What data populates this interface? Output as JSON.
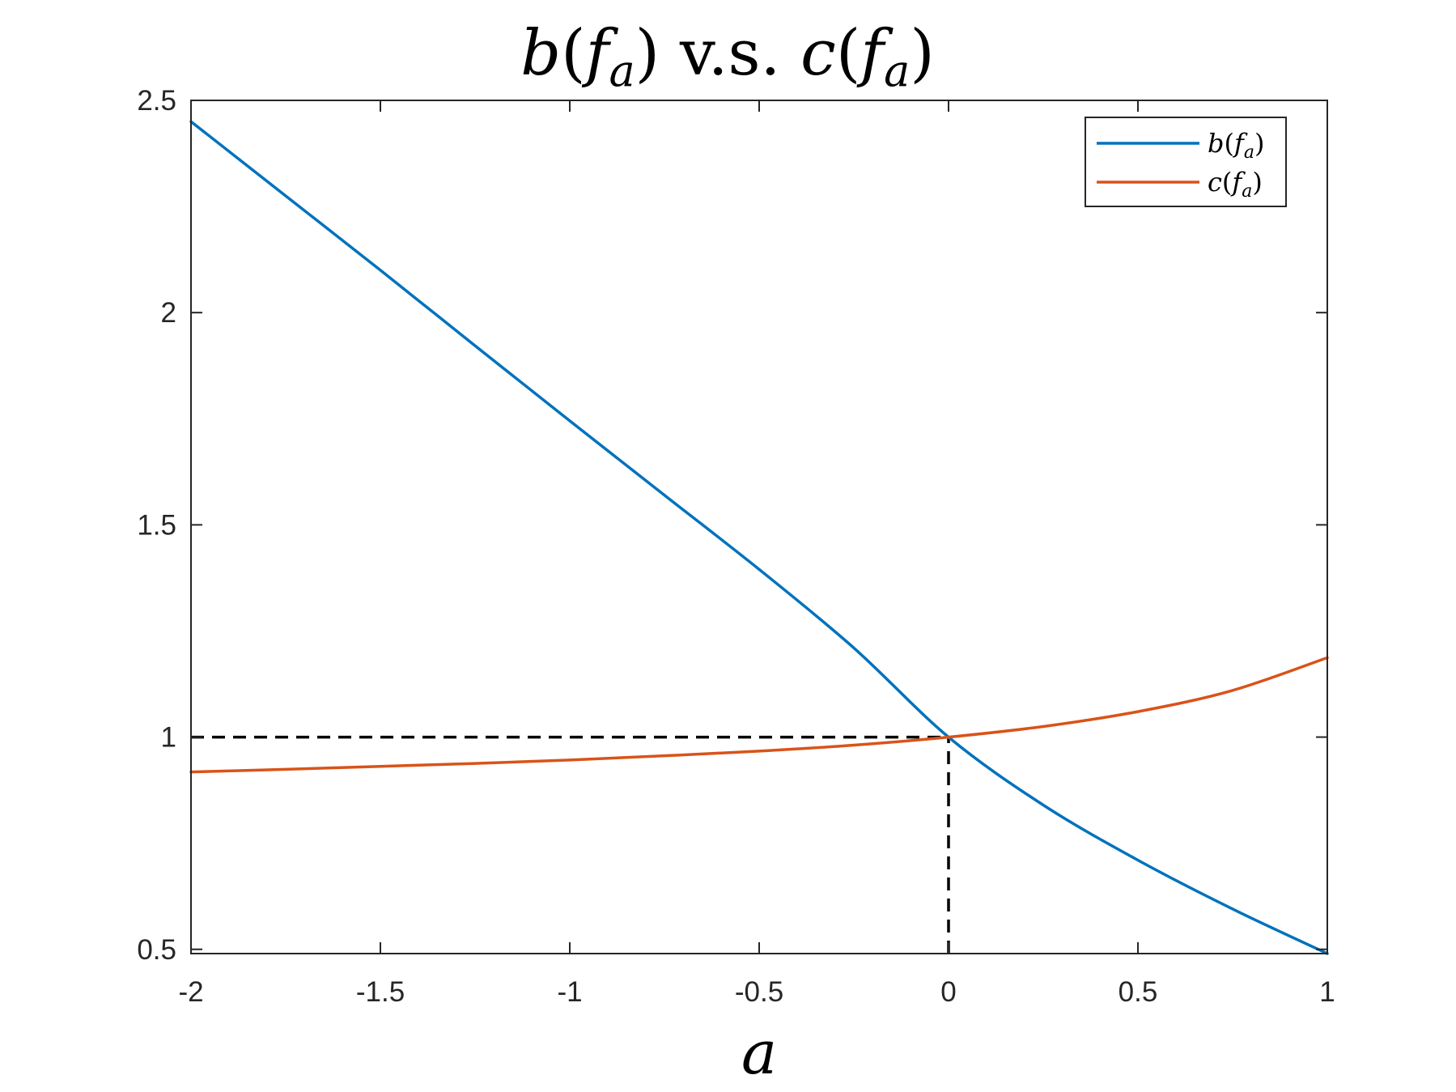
{
  "chart_data": {
    "type": "line",
    "title": {
      "b": "b",
      "open1": "(",
      "f": "f",
      "sub": "a",
      "close1": ")",
      "middle": " v.s. ",
      "c": "c",
      "open2": "(",
      "f2": "f",
      "sub2": "a",
      "close2": ")"
    },
    "xlabel": "a",
    "ylabel": "",
    "xlim": [
      -2,
      1
    ],
    "ylim": [
      0.49,
      2.5
    ],
    "x_ticks": [
      -2,
      -1.5,
      -1,
      -0.5,
      0,
      0.5,
      1
    ],
    "x_tick_labels": [
      "-2",
      "-1.5",
      "-1",
      "-0.5",
      "0",
      "0.5",
      "1"
    ],
    "y_ticks": [
      0.5,
      1,
      1.5,
      2,
      2.5
    ],
    "y_tick_labels": [
      "0.5",
      "1",
      "1.5",
      "2",
      "2.5"
    ],
    "grid": false,
    "legend_position": "top-right",
    "series": [
      {
        "name": {
          "fn": "b",
          "open": "(",
          "f": "f",
          "sub": "a",
          "close": ")"
        },
        "color": "#0072BD",
        "x": [
          -2,
          -1.75,
          -1.5,
          -1.25,
          -1,
          -0.75,
          -0.5,
          -0.25,
          0,
          0.25,
          0.5,
          0.75,
          1
        ],
        "y": [
          2.45,
          2.275,
          2.1,
          1.922,
          1.745,
          1.57,
          1.395,
          1.21,
          1.0,
          0.84,
          0.71,
          0.595,
          0.49
        ]
      },
      {
        "name": {
          "fn": "c",
          "open": "(",
          "f": "f",
          "sub": "a",
          "close": ")"
        },
        "color": "#D95319",
        "x": [
          -2,
          -1.75,
          -1.5,
          -1.25,
          -1,
          -0.75,
          -0.5,
          -0.25,
          0,
          0.25,
          0.5,
          0.75,
          1
        ],
        "y": [
          0.918,
          0.924,
          0.931,
          0.938,
          0.946,
          0.956,
          0.967,
          0.981,
          1.0,
          1.025,
          1.06,
          1.11,
          1.187
        ]
      }
    ],
    "reference_lines": [
      {
        "style": "dashed",
        "color": "#000000",
        "x": [
          -2,
          0
        ],
        "y": [
          1,
          1
        ]
      },
      {
        "style": "dashed",
        "color": "#000000",
        "x": [
          0,
          0
        ],
        "y": [
          0.49,
          1
        ]
      }
    ]
  }
}
